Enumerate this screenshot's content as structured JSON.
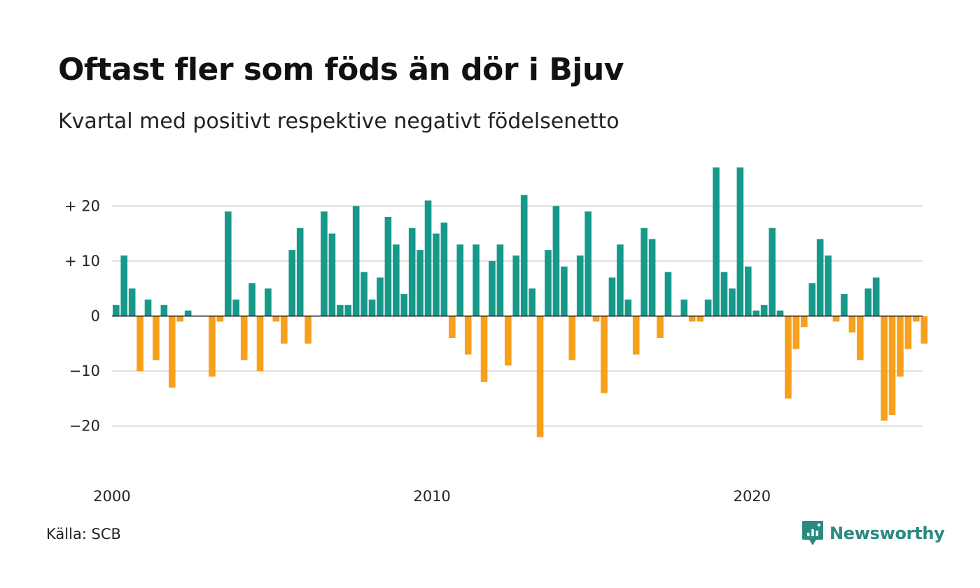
{
  "header": {
    "title": "Oftast fler som föds än dör i Bjuv",
    "subtitle": "Kvartal med positivt respektive negativt födelsenetto"
  },
  "footer": {
    "source": "Källa: SCB",
    "brand_name": "Newsworthy",
    "brand_icon": "newsworthy-chart-bubble-icon"
  },
  "colors": {
    "positive": "#17998a",
    "negative": "#f7a01c",
    "grid": "#dddddd",
    "zero_line": "#111111",
    "brand": "#2a8a80"
  },
  "chart_data": {
    "type": "bar",
    "title": "Oftast fler som föds än dör i Bjuv",
    "subtitle": "Kvartal med positivt respektive negativt födelsenetto",
    "x_start": 2000.0,
    "x_step": 0.25,
    "ylim": [
      -27,
      27
    ],
    "xlim": [
      2000,
      2025.4
    ],
    "y_ticks": [
      {
        "value": 20,
        "label": "+ 20"
      },
      {
        "value": 10,
        "label": "+ 10"
      },
      {
        "value": 0,
        "label": "0"
      },
      {
        "value": -10,
        "label": "−10"
      },
      {
        "value": -20,
        "label": "−20"
      }
    ],
    "x_ticks": [
      {
        "value": 2000,
        "label": "2000"
      },
      {
        "value": 2010,
        "label": "2010"
      },
      {
        "value": 2020,
        "label": "2020"
      }
    ],
    "grid": true,
    "values": [
      2,
      11,
      5,
      -10,
      3,
      -8,
      2,
      -13,
      -1,
      1,
      0,
      0,
      -11,
      -1,
      19,
      3,
      -8,
      6,
      -10,
      5,
      -1,
      -5,
      12,
      16,
      -5,
      0,
      19,
      15,
      2,
      2,
      20,
      8,
      3,
      7,
      18,
      13,
      4,
      16,
      12,
      21,
      15,
      17,
      -4,
      13,
      -7,
      13,
      -12,
      10,
      13,
      -9,
      11,
      22,
      5,
      -22,
      12,
      20,
      9,
      -8,
      11,
      19,
      -1,
      -14,
      7,
      13,
      3,
      -7,
      16,
      14,
      -4,
      8,
      0,
      3,
      -1,
      -1,
      3,
      27,
      8,
      5,
      27,
      9,
      1,
      2,
      16,
      1,
      -15,
      -6,
      -2,
      6,
      14,
      11,
      -1,
      4,
      -3,
      -8,
      5,
      7,
      -19,
      -18,
      -11,
      -6,
      -1,
      -5
    ]
  }
}
